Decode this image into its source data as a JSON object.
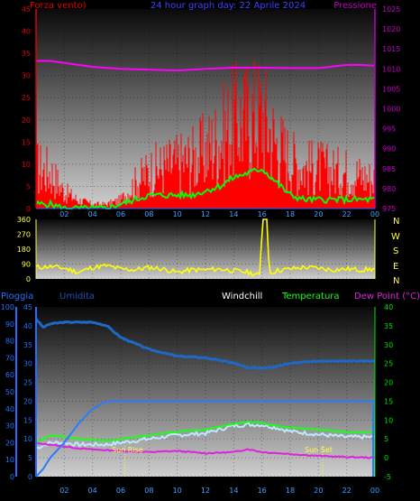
{
  "colors": {
    "wind": "#ff0000",
    "gust_green": "#00ff00",
    "pressure": "#ff00ff",
    "direction": "#ffff00",
    "rain": "#0a64d8",
    "humidity": "#1e68c8",
    "temperature": "#19ff19",
    "windchill": "#bfe8ff",
    "dewpoint": "#e020e0",
    "title": "#4040ff",
    "left_axis_red": "#e00000",
    "right_axis_magenta": "#c000c0",
    "rain_axis": "#2070ff",
    "temp_axis": "#00e000",
    "sun": "#ffff40"
  },
  "header": {
    "left": "Forza vento)",
    "center": "24 hour graph day: 22 Aprile 2024",
    "right": "Pressione"
  },
  "direction_letters": [
    "N",
    "W",
    "S",
    "E",
    "N"
  ],
  "bottom_header": {
    "rain": "Pioggia",
    "humidity": "Umidita",
    "windchill": "Windchill",
    "temperature": "Temperatura",
    "dewpoint": "Dew Point (°C)"
  },
  "sun_labels": {
    "rise": "Sun Rise",
    "set": "Sun Set"
  },
  "chart_data": [
    {
      "type": "line",
      "title": "24 hour graph day: 22 Aprile 2024",
      "x_ticks": [
        "02",
        "04",
        "06",
        "08",
        "10",
        "12",
        "14",
        "16",
        "18",
        "20",
        "22",
        "00"
      ],
      "x_hours": [
        0,
        24
      ],
      "left_axis": {
        "label": "Forza vento)",
        "ticks": [
          0,
          5,
          10,
          15,
          20,
          25,
          30,
          35,
          40,
          45
        ],
        "range": [
          0,
          45
        ]
      },
      "right_axis": {
        "label": "Pressione",
        "ticks": [
          975,
          980,
          985,
          990,
          995,
          1000,
          1005,
          1010,
          1015,
          1020,
          1025
        ],
        "range": [
          975,
          1025
        ]
      },
      "series": [
        {
          "axis": "left",
          "style": "spikes",
          "hours": [
            0,
            1,
            2,
            3,
            4,
            5,
            6,
            7,
            8,
            9,
            10,
            11,
            12,
            13,
            14,
            15,
            16,
            17,
            18,
            19,
            20,
            21,
            22,
            23,
            24
          ],
          "values": [
            10,
            9,
            4,
            2,
            1,
            1,
            2,
            6,
            9,
            10,
            11,
            12,
            14,
            17,
            21,
            22,
            23,
            16,
            12,
            10,
            10,
            9,
            9,
            8,
            7
          ]
        },
        {
          "axis": "left",
          "hours": [
            0,
            1,
            2,
            3,
            4,
            5,
            6,
            7,
            8,
            9,
            10,
            11,
            12,
            13,
            14,
            15,
            16,
            17,
            18,
            19,
            20,
            21,
            22,
            23,
            24
          ],
          "values": [
            1,
            1,
            0,
            0,
            0,
            0,
            1,
            2,
            3,
            3,
            3,
            3,
            4,
            5,
            7,
            8,
            9,
            6,
            3,
            2,
            2,
            2,
            2,
            2,
            2
          ]
        },
        {
          "name": "Pressione",
          "axis": "right",
          "hours": [
            0,
            1,
            2,
            4,
            6,
            8,
            10,
            12,
            14,
            16,
            18,
            20,
            22,
            23,
            24
          ],
          "values": [
            1012,
            1012,
            1011.5,
            1010.5,
            1010,
            1009.8,
            1009.6,
            1010,
            1010.3,
            1010.3,
            1010.2,
            1010.2,
            1011,
            1011,
            1010.8
          ]
        }
      ]
    },
    {
      "type": "line",
      "left_axis": {
        "ticks": [
          0,
          90,
          180,
          270,
          360
        ],
        "range": [
          0,
          360
        ]
      },
      "right_axis": {
        "ticks": [
          "N",
          "W",
          "S",
          "E",
          "N"
        ]
      },
      "series": [
        {
          "style": "direction",
          "hours": [
            0,
            1,
            2,
            3,
            4,
            5,
            6,
            7,
            8,
            9,
            10,
            11,
            12,
            13,
            14,
            15,
            15.9,
            16,
            16.4,
            16.5,
            17,
            18,
            19,
            20,
            21,
            22,
            23,
            24
          ],
          "values": [
            70,
            75,
            65,
            40,
            70,
            80,
            60,
            55,
            70,
            60,
            40,
            55,
            55,
            60,
            50,
            40,
            20,
            360,
            360,
            30,
            50,
            60,
            70,
            65,
            55,
            60,
            55,
            60
          ]
        }
      ]
    },
    {
      "type": "line",
      "x_ticks": [
        "02",
        "04",
        "06",
        "08",
        "10",
        "12",
        "14",
        "16",
        "18",
        "20",
        "22",
        "00"
      ],
      "rain_axis": {
        "label": "Pioggia",
        "ticks": [
          0,
          5,
          10,
          15,
          20,
          25,
          30,
          35,
          40,
          45
        ],
        "range": [
          0,
          45
        ]
      },
      "humidity_axis": {
        "label": "Umidita",
        "ticks": [
          0,
          10,
          20,
          30,
          40,
          50,
          60,
          70,
          80,
          90,
          100
        ],
        "range": [
          0,
          100
        ]
      },
      "temp_axis": {
        "label": "Temperatura",
        "ticks": [
          -5,
          0,
          5,
          10,
          15,
          20,
          25,
          30,
          35,
          40
        ],
        "range": [
          -5,
          40
        ]
      },
      "series": [
        {
          "name": "Pioggia",
          "axis": "rain",
          "hours": [
            0,
            0.5,
            1,
            2,
            3,
            4,
            5,
            6,
            24
          ],
          "values": [
            0,
            2,
            5,
            9,
            14,
            18,
            20,
            20,
            20
          ]
        },
        {
          "name": "Umidita",
          "axis": "humidity",
          "hours": [
            0,
            0.5,
            1,
            2,
            3,
            4,
            5,
            6,
            8,
            10,
            12,
            14,
            15,
            16,
            17,
            18,
            20,
            22,
            24
          ],
          "values": [
            93,
            88,
            90,
            91,
            91,
            91,
            89,
            82,
            75,
            71,
            70,
            67,
            64,
            64,
            65,
            67,
            68,
            68,
            68
          ]
        },
        {
          "name": "Temperatura",
          "axis": "temp",
          "hours": [
            0,
            1,
            2,
            3,
            4,
            5,
            6,
            8,
            10,
            12,
            13,
            14,
            15,
            16,
            17,
            18,
            20,
            22,
            24
          ],
          "values": [
            4,
            6,
            5.5,
            5,
            4.8,
            4.5,
            5,
            6,
            7,
            7.5,
            8.2,
            9,
            9.5,
            9.3,
            8.5,
            8,
            7.5,
            6.8,
            6.8
          ]
        },
        {
          "name": "Windchill",
          "axis": "temp",
          "hours": [
            0,
            1,
            2,
            3,
            4,
            5,
            6,
            8,
            10,
            12,
            13,
            14,
            15,
            16,
            17,
            18,
            20,
            22,
            24
          ],
          "values": [
            2.5,
            4,
            4,
            3.5,
            3.5,
            3.5,
            4,
            5,
            6,
            6.5,
            7.5,
            8.5,
            8.8,
            8.7,
            8,
            7,
            6.2,
            5.5,
            5.5
          ]
        },
        {
          "name": "Dew Point (°C)",
          "axis": "temp",
          "hours": [
            0,
            1,
            2,
            3,
            4,
            5,
            6,
            8,
            10,
            12,
            14,
            15,
            16,
            18,
            20,
            22,
            24
          ],
          "values": [
            3.8,
            3.5,
            3,
            2.5,
            2.2,
            2,
            1.8,
            1.5,
            1.8,
            1.2,
            1.5,
            2.3,
            1.5,
            1,
            0.5,
            0.2,
            0
          ]
        }
      ],
      "sun_events": [
        {
          "label": "Sun Rise",
          "hour": 6.3
        },
        {
          "label": "Sun Set",
          "hour": 20.3
        }
      ]
    }
  ]
}
